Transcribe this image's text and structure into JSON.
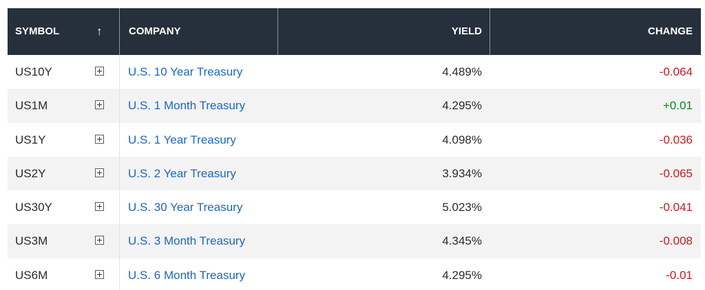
{
  "header": {
    "symbol": "SYMBOL",
    "sort_icon": "↑",
    "company": "COMPANY",
    "yield": "YIELD",
    "change": "CHANGE"
  },
  "rows": [
    {
      "symbol": "US10Y",
      "company": "U.S. 10 Year Treasury",
      "yield": "4.489%",
      "change": "-0.064",
      "direction": "neg"
    },
    {
      "symbol": "US1M",
      "company": "U.S. 1 Month Treasury",
      "yield": "4.295%",
      "change": "+0.01",
      "direction": "pos"
    },
    {
      "symbol": "US1Y",
      "company": "U.S. 1 Year Treasury",
      "yield": "4.098%",
      "change": "-0.036",
      "direction": "neg"
    },
    {
      "symbol": "US2Y",
      "company": "U.S. 2 Year Treasury",
      "yield": "3.934%",
      "change": "-0.065",
      "direction": "neg"
    },
    {
      "symbol": "US30Y",
      "company": "U.S. 30 Year Treasury",
      "yield": "5.023%",
      "change": "-0.041",
      "direction": "neg"
    },
    {
      "symbol": "US3M",
      "company": "U.S. 3 Month Treasury",
      "yield": "4.345%",
      "change": "-0.008",
      "direction": "neg"
    },
    {
      "symbol": "US6M",
      "company": "U.S. 6 Month Treasury",
      "yield": "4.295%",
      "change": "-0.01",
      "direction": "neg"
    }
  ],
  "icons": {
    "add": "plus-box-icon",
    "sort": "arrow-up-icon"
  },
  "colors": {
    "header_bg": "#26303c",
    "link": "#1a67c9",
    "negative": "#d0181a",
    "positive": "#14821e",
    "alt_row": "#f3f3f3"
  }
}
